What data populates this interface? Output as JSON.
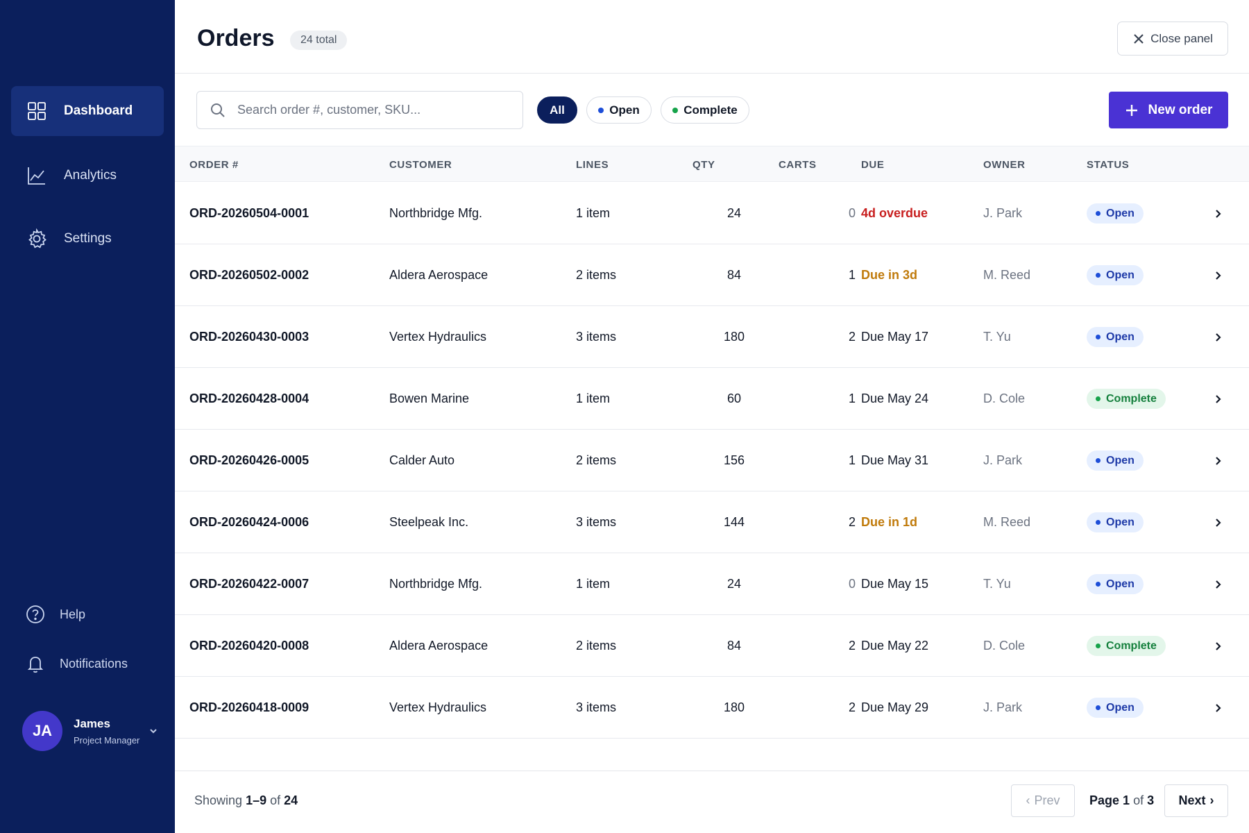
{
  "sidebar": {
    "nav": [
      {
        "label": "Dashboard",
        "icon": "grid-icon",
        "active": true
      },
      {
        "label": "Analytics",
        "icon": "chart-line-icon",
        "active": false
      },
      {
        "label": "Settings",
        "icon": "gear-icon",
        "active": false
      }
    ],
    "secondary": [
      {
        "label": "Help",
        "icon": "help-circle-icon"
      },
      {
        "label": "Notifications",
        "icon": "bell-icon"
      }
    ],
    "user": {
      "initials": "JA",
      "name": "James",
      "role": "Project Manager"
    }
  },
  "header": {
    "title": "Orders",
    "count_badge": "24 total",
    "close_label": "Close panel"
  },
  "toolbar": {
    "search_placeholder": "Search order #, customer, SKU...",
    "filters": [
      {
        "label": "All",
        "active": true,
        "dot": null
      },
      {
        "label": "Open",
        "active": false,
        "dot": "#1d4ed8"
      },
      {
        "label": "Complete",
        "active": false,
        "dot": "#16a34a"
      }
    ],
    "new_order_label": "New order"
  },
  "table": {
    "columns": [
      "ORDER #",
      "CUSTOMER",
      "LINES",
      "QTY",
      "CARTS",
      "DUE",
      "OWNER",
      "STATUS"
    ],
    "rows": [
      {
        "order": "ORD-20260504-0001",
        "customer": "Northbridge Mfg.",
        "lines": "1 item",
        "qty": "24",
        "carts": "0",
        "due": "4d overdue",
        "due_state": "overdue",
        "owner": "J. Park",
        "status": "Open"
      },
      {
        "order": "ORD-20260502-0002",
        "customer": "Aldera Aerospace",
        "lines": "2 items",
        "qty": "84",
        "carts": "1",
        "due": "Due in 3d",
        "due_state": "soon",
        "owner": "M. Reed",
        "status": "Open"
      },
      {
        "order": "ORD-20260430-0003",
        "customer": "Vertex Hydraulics",
        "lines": "3 items",
        "qty": "180",
        "carts": "2",
        "due": "Due May 17",
        "due_state": "normal",
        "owner": "T. Yu",
        "status": "Open"
      },
      {
        "order": "ORD-20260428-0004",
        "customer": "Bowen Marine",
        "lines": "1 item",
        "qty": "60",
        "carts": "1",
        "due": "Due May 24",
        "due_state": "normal",
        "owner": "D. Cole",
        "status": "Complete"
      },
      {
        "order": "ORD-20260426-0005",
        "customer": "Calder Auto",
        "lines": "2 items",
        "qty": "156",
        "carts": "1",
        "due": "Due May 31",
        "due_state": "normal",
        "owner": "J. Park",
        "status": "Open"
      },
      {
        "order": "ORD-20260424-0006",
        "customer": "Steelpeak Inc.",
        "lines": "3 items",
        "qty": "144",
        "carts": "2",
        "due": "Due in 1d",
        "due_state": "soon",
        "owner": "M. Reed",
        "status": "Open"
      },
      {
        "order": "ORD-20260422-0007",
        "customer": "Northbridge Mfg.",
        "lines": "1 item",
        "qty": "24",
        "carts": "0",
        "due": "Due May 15",
        "due_state": "normal",
        "owner": "T. Yu",
        "status": "Open"
      },
      {
        "order": "ORD-20260420-0008",
        "customer": "Aldera Aerospace",
        "lines": "2 items",
        "qty": "84",
        "carts": "2",
        "due": "Due May 22",
        "due_state": "normal",
        "owner": "D. Cole",
        "status": "Complete"
      },
      {
        "order": "ORD-20260418-0009",
        "customer": "Vertex Hydraulics",
        "lines": "3 items",
        "qty": "180",
        "carts": "2",
        "due": "Due May 29",
        "due_state": "normal",
        "owner": "J. Park",
        "status": "Open"
      }
    ]
  },
  "footer": {
    "showing_prefix": "Showing",
    "showing_range": "1–9",
    "showing_of": "of",
    "showing_total": "24",
    "prev_label": "Prev",
    "page_word": "Page",
    "page_current": "1",
    "page_of": "of",
    "page_total": "3",
    "next_label": "Next"
  },
  "colors": {
    "sidebar_bg": "#0b1f5c",
    "accent": "#4a32d4",
    "overdue": "#c81e1e",
    "due_soon": "#c07a0a",
    "open_text": "#1e3aa8",
    "complete_text": "#15803d"
  }
}
